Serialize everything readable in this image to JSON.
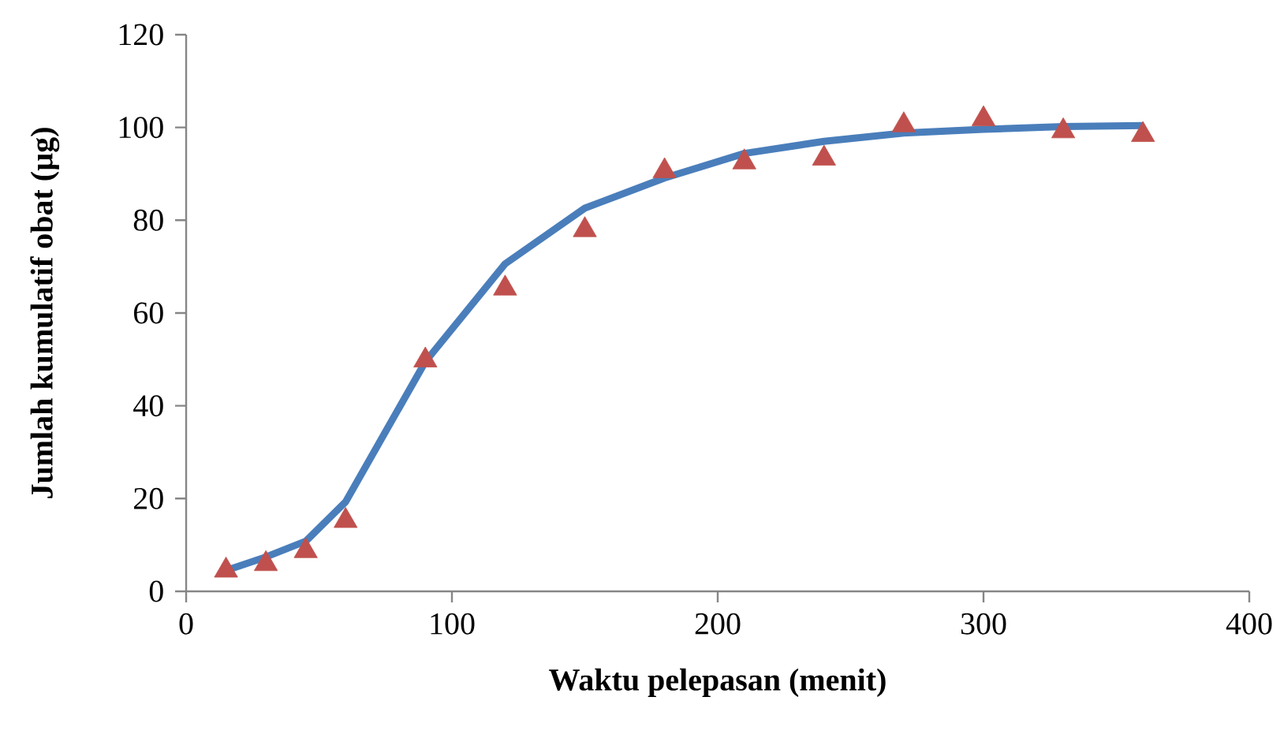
{
  "chart_data": {
    "type": "line",
    "xlabel": "Waktu pelepasan (menit)",
    "ylabel": "Jumlah kumulatif obat (µg)",
    "xlim": [
      0,
      400
    ],
    "ylim": [
      0,
      120
    ],
    "xticks": [
      0,
      100,
      200,
      300,
      400
    ],
    "yticks": [
      0,
      20,
      40,
      60,
      80,
      100,
      120
    ],
    "grid": false,
    "series": [
      {
        "type": "line",
        "color": "#4a7ebb",
        "marker": "none",
        "line_style": "solid",
        "x": [
          15,
          30,
          45,
          60,
          90,
          120,
          150,
          180,
          210,
          240,
          270,
          300,
          330,
          360
        ],
        "values": [
          4.5,
          7.4,
          10.8,
          19.3,
          49.5,
          70.6,
          82.6,
          89.1,
          94.4,
          97,
          98.8,
          99.6,
          100.2,
          100.4
        ]
      },
      {
        "type": "scatter",
        "color": "#c0504d",
        "marker": "triangle",
        "x": [
          15,
          30,
          45,
          60,
          90,
          120,
          150,
          180,
          210,
          240,
          270,
          300,
          330,
          360
        ],
        "values": [
          4.5,
          5.9,
          8.7,
          15.2,
          49.8,
          65.3,
          77.9,
          90.6,
          92.5,
          93.3,
          100.5,
          101.8,
          99.2,
          98.4
        ]
      }
    ]
  }
}
